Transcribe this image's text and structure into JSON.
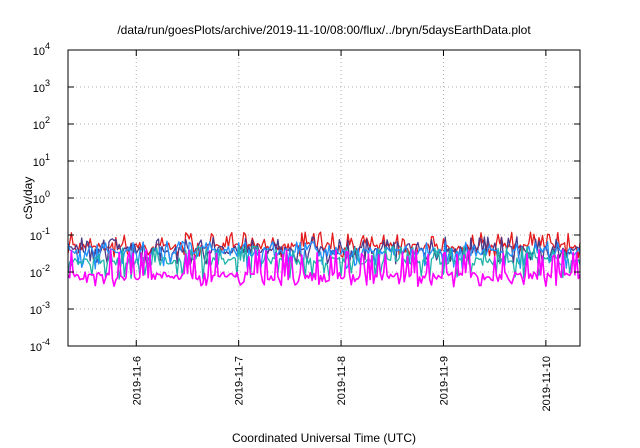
{
  "chart_data": {
    "type": "line",
    "title": "/data/run/goesPlots/archive/2019-11-10/08:00/flux/../bryn/5daysEarthData.plot",
    "xlabel": "Coordinated Universal Time (UTC)",
    "ylabel": "cSv/day",
    "yscale": "log",
    "ylim": [
      0.0001,
      10000
    ],
    "yticks": [
      {
        "value": 0.0001,
        "base": "10",
        "exp": "-4"
      },
      {
        "value": 0.001,
        "base": "10",
        "exp": "-3"
      },
      {
        "value": 0.01,
        "base": "10",
        "exp": "-2"
      },
      {
        "value": 0.1,
        "base": "10",
        "exp": "-1"
      },
      {
        "value": 1,
        "base": "10",
        "exp": "0"
      },
      {
        "value": 10,
        "base": "10",
        "exp": "1"
      },
      {
        "value": 100,
        "base": "10",
        "exp": "2"
      },
      {
        "value": 1000,
        "base": "10",
        "exp": "3"
      },
      {
        "value": 10000,
        "base": "10",
        "exp": "4"
      }
    ],
    "xlim": [
      "2019-11-05 08:00",
      "2019-11-10 08:00"
    ],
    "xticks": [
      "2019-11-6",
      "2019-11-7",
      "2019-11-8",
      "2019-11-9",
      "2019-11-10"
    ],
    "grid": true,
    "series": [
      {
        "color": "#e41a1c",
        "typical": 0.05,
        "low": 0.03,
        "high": 0.12
      },
      {
        "color": "#4a3a8a",
        "typical": 0.04,
        "low": 0.02,
        "high": 0.09
      },
      {
        "color": "#1e90ff",
        "typical": 0.035,
        "low": 0.015,
        "high": 0.07
      },
      {
        "color": "#20b2aa",
        "typical": 0.02,
        "low": 0.008,
        "high": 0.05
      },
      {
        "color": "#ff00ff",
        "typical": 0.008,
        "low": 0.005,
        "high": 0.04
      }
    ]
  }
}
